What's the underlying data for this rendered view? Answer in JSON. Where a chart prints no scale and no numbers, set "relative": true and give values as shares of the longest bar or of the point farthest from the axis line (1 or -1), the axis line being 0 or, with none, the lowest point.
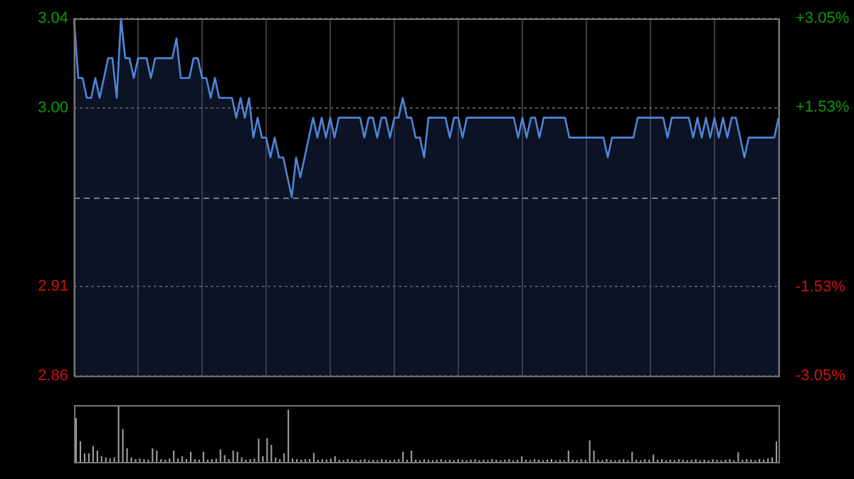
{
  "chart_data": [
    {
      "type": "area",
      "categories": [
        null,
        null,
        null,
        null,
        null,
        null,
        null,
        null,
        null,
        null,
        null,
        null,
        null,
        null,
        null,
        null,
        null,
        null,
        null,
        null,
        null,
        null,
        null,
        null,
        null,
        null,
        null,
        null,
        null,
        null,
        null,
        null,
        null,
        null,
        null,
        null,
        null,
        null,
        null,
        null,
        null,
        null,
        null,
        null,
        null,
        null,
        null,
        null,
        null,
        null,
        null,
        null,
        null,
        null,
        null,
        null,
        null,
        null,
        null,
        null,
        null,
        null,
        null,
        null,
        null,
        null,
        null,
        null,
        null,
        null,
        null,
        null,
        null,
        null,
        null,
        null,
        null,
        null,
        null,
        null,
        null,
        null,
        null,
        null,
        null,
        null,
        null,
        null,
        null,
        null,
        null,
        null,
        null,
        null,
        null,
        null,
        null,
        null,
        null,
        null,
        null,
        null,
        null,
        null,
        null,
        null,
        null,
        null,
        null,
        null,
        null,
        null,
        null,
        null,
        null,
        null,
        null,
        null,
        null,
        null,
        null,
        null,
        null,
        null,
        null,
        null,
        null,
        null,
        null,
        null,
        null,
        null,
        null,
        null,
        null,
        null,
        null,
        null,
        null,
        null,
        null,
        null,
        null,
        null,
        null,
        null,
        null,
        null,
        null,
        null,
        null,
        null,
        null,
        null,
        null,
        null,
        null,
        null,
        null,
        null,
        null,
        null,
        null,
        null,
        null,
        null
      ],
      "series": [
        {
          "color": "#4f86d9",
          "values": [
            3.04,
            3.01,
            3.01,
            3.0,
            3.0,
            3.01,
            3.0,
            3.01,
            3.02,
            3.02,
            3.0,
            3.04,
            3.02,
            3.02,
            3.01,
            3.02,
            3.02,
            3.02,
            3.01,
            3.02,
            3.02,
            3.02,
            3.02,
            3.02,
            3.03,
            3.01,
            3.01,
            3.01,
            3.02,
            3.02,
            3.01,
            3.01,
            3.0,
            3.01,
            3.0,
            3.0,
            3.0,
            3.0,
            2.99,
            3.0,
            2.99,
            3.0,
            2.98,
            2.99,
            2.98,
            2.98,
            2.97,
            2.98,
            2.97,
            2.97,
            2.96,
            2.95,
            2.97,
            2.96,
            2.97,
            2.98,
            2.99,
            2.98,
            2.99,
            2.98,
            2.99,
            2.98,
            2.99,
            2.99,
            2.99,
            2.99,
            2.99,
            2.99,
            2.98,
            2.99,
            2.99,
            2.98,
            2.99,
            2.99,
            2.98,
            2.99,
            2.99,
            3.0,
            2.99,
            2.99,
            2.98,
            2.98,
            2.97,
            2.99,
            2.99,
            2.99,
            2.99,
            2.99,
            2.98,
            2.99,
            2.99,
            2.98,
            2.99,
            2.99,
            2.99,
            2.99,
            2.99,
            2.99,
            2.99,
            2.99,
            2.99,
            2.99,
            2.99,
            2.99,
            2.98,
            2.99,
            2.98,
            2.99,
            2.99,
            2.98,
            2.99,
            2.99,
            2.99,
            2.99,
            2.99,
            2.99,
            2.98,
            2.98,
            2.98,
            2.98,
            2.98,
            2.98,
            2.98,
            2.98,
            2.98,
            2.97,
            2.98,
            2.98,
            2.98,
            2.98,
            2.98,
            2.98,
            2.99,
            2.99,
            2.99,
            2.99,
            2.99,
            2.99,
            2.99,
            2.98,
            2.99,
            2.99,
            2.99,
            2.99,
            2.99,
            2.98,
            2.99,
            2.98,
            2.99,
            2.98,
            2.99,
            2.98,
            2.99,
            2.98,
            2.99,
            2.99,
            2.98,
            2.97,
            2.98,
            2.98,
            2.98,
            2.98,
            2.98,
            2.98,
            2.98,
            2.99
          ]
        }
      ],
      "ylim": [
        2.86,
        3.04
      ],
      "yticks": [
        2.86,
        {
          "value": 2.905,
          "label": "2.91"
        },
        {
          "value": 2.995,
          "label": "3.00"
        },
        3.04
      ],
      "y2lim": [
        -3.05,
        3.05
      ],
      "y2ticks": [
        {
          "value": -3.05,
          "label": "-3.05%"
        },
        {
          "value": -1.53,
          "label": "-1.53%"
        },
        {
          "value": 1.53,
          "label": "+1.53%"
        },
        {
          "value": 3.05,
          "label": "+3.05%"
        }
      ],
      "ref_lines": [
        {
          "axis": "y",
          "value": 2.95,
          "line_style": "dashed",
          "color": "#8a96a6"
        }
      ],
      "grid": true,
      "marker": "none",
      "legend": false
    },
    {
      "type": "bar",
      "relative": true,
      "color": "#a0a0a0",
      "categories": [
        null,
        null,
        null,
        null,
        null,
        null,
        null,
        null,
        null,
        null,
        null,
        null,
        null,
        null,
        null,
        null,
        null,
        null,
        null,
        null,
        null,
        null,
        null,
        null,
        null,
        null,
        null,
        null,
        null,
        null,
        null,
        null,
        null,
        null,
        null,
        null,
        null,
        null,
        null,
        null,
        null,
        null,
        null,
        null,
        null,
        null,
        null,
        null,
        null,
        null,
        null,
        null,
        null,
        null,
        null,
        null,
        null,
        null,
        null,
        null,
        null,
        null,
        null,
        null,
        null,
        null,
        null,
        null,
        null,
        null,
        null,
        null,
        null,
        null,
        null,
        null,
        null,
        null,
        null,
        null,
        null,
        null,
        null,
        null,
        null,
        null,
        null,
        null,
        null,
        null,
        null,
        null,
        null,
        null,
        null,
        null,
        null,
        null,
        null,
        null,
        null,
        null,
        null,
        null,
        null,
        null,
        null,
        null,
        null,
        null,
        null,
        null,
        null,
        null,
        null,
        null,
        null,
        null,
        null,
        null,
        null,
        null,
        null,
        null,
        null,
        null,
        null,
        null,
        null,
        null,
        null,
        null,
        null,
        null,
        null,
        null,
        null,
        null,
        null,
        null,
        null,
        null,
        null,
        null,
        null,
        null,
        null,
        null,
        null,
        null,
        null,
        null,
        null,
        null,
        null,
        null,
        null,
        null,
        null,
        null,
        null,
        null,
        null,
        null,
        null,
        null
      ],
      "values": [
        0.77,
        0.36,
        0.15,
        0.15,
        0.28,
        0.2,
        0.1,
        0.08,
        0.06,
        0.08,
        1,
        0.58,
        0.24,
        0.08,
        0.05,
        0.06,
        0.05,
        0.04,
        0.24,
        0.2,
        0.05,
        0.04,
        0.06,
        0.2,
        0.06,
        0.1,
        0.05,
        0.18,
        0.05,
        0.04,
        0.18,
        0.04,
        0.05,
        0.06,
        0.22,
        0.12,
        0.05,
        0.2,
        0.18,
        0.08,
        0.04,
        0.05,
        0.06,
        0.41,
        0.1,
        0.42,
        0.3,
        0.08,
        0.05,
        0.15,
        0.92,
        0.06,
        0.05,
        0.04,
        0.05,
        0.05,
        0.16,
        0.04,
        0.05,
        0.04,
        0.06,
        0.1,
        0.04,
        0.03,
        0.05,
        0.04,
        0.03,
        0.04,
        0.05,
        0.03,
        0.04,
        0.03,
        0.05,
        0.04,
        0.03,
        0.04,
        0.05,
        0.18,
        0.04,
        0.2,
        0.04,
        0.03,
        0.05,
        0.04,
        0.03,
        0.04,
        0.05,
        0.03,
        0.04,
        0.03,
        0.05,
        0.04,
        0.03,
        0.04,
        0.05,
        0.03,
        0.04,
        0.03,
        0.05,
        0.04,
        0.03,
        0.04,
        0.05,
        0.03,
        0.04,
        0.1,
        0.04,
        0.03,
        0.05,
        0.04,
        0.03,
        0.04,
        0.05,
        0.03,
        0.04,
        0.03,
        0.2,
        0.04,
        0.03,
        0.05,
        0.04,
        0.38,
        0.2,
        0.04,
        0.03,
        0.05,
        0.04,
        0.03,
        0.04,
        0.05,
        0.03,
        0.18,
        0.04,
        0.03,
        0.05,
        0.04,
        0.13,
        0.04,
        0.05,
        0.03,
        0.04,
        0.03,
        0.05,
        0.04,
        0.03,
        0.04,
        0.05,
        0.03,
        0.04,
        0.03,
        0.05,
        0.04,
        0.03,
        0.04,
        0.05,
        0.03,
        0.17,
        0.04,
        0.05,
        0.04,
        0.03,
        0.05,
        0.04,
        0.06,
        0.08,
        0.36
      ]
    }
  ]
}
